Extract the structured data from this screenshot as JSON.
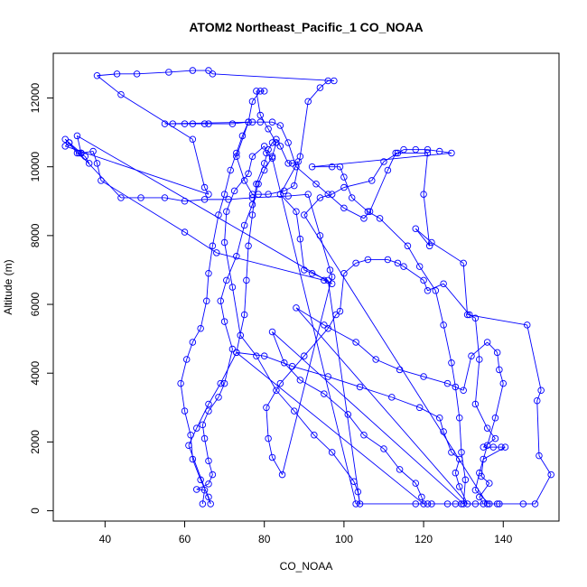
{
  "chart_data": {
    "type": "line",
    "title": "ATOM2 Northeast_Pacific_1 CO_NOAA",
    "xlabel": "CO_NOAA",
    "ylabel": "Altitude (m)",
    "xlim": [
      27,
      154
    ],
    "ylim": [
      -300,
      13300
    ],
    "xticks": [
      40,
      60,
      80,
      100,
      120,
      140
    ],
    "yticks": [
      0,
      2000,
      4000,
      6000,
      8000,
      10000,
      12000
    ],
    "color": "#0000ff",
    "marker": "open-circle",
    "grid": false,
    "points": [
      [
        64.5,
        200
      ],
      [
        65.0,
        600
      ],
      [
        63.0,
        620
      ],
      [
        66.0,
        780
      ],
      [
        67.0,
        1050
      ],
      [
        66.0,
        1450
      ],
      [
        65.0,
        2100
      ],
      [
        64.5,
        2500
      ],
      [
        66.0,
        2900
      ],
      [
        68.5,
        3300
      ],
      [
        70.0,
        3700
      ],
      [
        72.0,
        4700
      ],
      [
        70.0,
        5500
      ],
      [
        69.0,
        6100
      ],
      [
        70.5,
        6700
      ],
      [
        73.0,
        7400
      ],
      [
        75.0,
        8300
      ],
      [
        77.0,
        8900
      ],
      [
        78.5,
        9500
      ],
      [
        80.0,
        9900
      ],
      [
        82.0,
        10300
      ],
      [
        83.0,
        10700
      ],
      [
        81.0,
        11100
      ],
      [
        79.0,
        11500
      ],
      [
        78.0,
        12200
      ],
      [
        80.0,
        12200
      ],
      [
        79.0,
        12200
      ],
      [
        77.0,
        11900
      ],
      [
        76.0,
        11300
      ],
      [
        74.5,
        10900
      ],
      [
        73.0,
        10400
      ],
      [
        71.5,
        9900
      ],
      [
        70.0,
        9200
      ],
      [
        68.5,
        8600
      ],
      [
        67.0,
        7700
      ],
      [
        66.0,
        6900
      ],
      [
        65.5,
        6100
      ],
      [
        64.0,
        5300
      ],
      [
        62.0,
        4900
      ],
      [
        60.5,
        4400
      ],
      [
        59.0,
        3700
      ],
      [
        60.0,
        2900
      ],
      [
        61.5,
        2200
      ],
      [
        62.0,
        1500
      ],
      [
        64.0,
        900
      ],
      [
        66.0,
        400
      ],
      [
        66.5,
        200
      ],
      [
        61.0,
        1900
      ],
      [
        63.0,
        2400
      ],
      [
        66.0,
        3100
      ],
      [
        69.0,
        3700
      ],
      [
        73.0,
        4600
      ],
      [
        75.0,
        5700
      ],
      [
        75.5,
        6700
      ],
      [
        76.0,
        7700
      ],
      [
        77.0,
        8600
      ],
      [
        78.0,
        9500
      ],
      [
        80.0,
        10100
      ],
      [
        81.0,
        10500
      ],
      [
        82.0,
        10700
      ],
      [
        83.0,
        10800
      ],
      [
        84.0,
        10600
      ],
      [
        86.0,
        10100
      ],
      [
        87.0,
        10100
      ],
      [
        88.5,
        10150
      ],
      [
        84.0,
        9200
      ],
      [
        88.0,
        8700
      ],
      [
        89.0,
        7900
      ],
      [
        90.0,
        7000
      ],
      [
        92.0,
        6900
      ],
      [
        96.0,
        6700
      ],
      [
        104.0,
        200
      ],
      [
        103.5,
        550
      ],
      [
        102.5,
        850
      ],
      [
        97.0,
        1700
      ],
      [
        92.5,
        2200
      ],
      [
        87.5,
        2900
      ],
      [
        83.0,
        3500
      ],
      [
        78.0,
        4500
      ],
      [
        74.0,
        5100
      ],
      [
        72.0,
        6500
      ],
      [
        70.0,
        7800
      ],
      [
        70.5,
        8700
      ],
      [
        72.5,
        9300
      ],
      [
        76.0,
        9800
      ],
      [
        77.0,
        10300
      ],
      [
        80.0,
        10600
      ],
      [
        80.5,
        10400
      ],
      [
        82.0,
        10250
      ],
      [
        103.0,
        200
      ],
      [
        118.0,
        200
      ],
      [
        121.0,
        200
      ],
      [
        122.0,
        200
      ],
      [
        126.0,
        200
      ],
      [
        128.0,
        200
      ],
      [
        129.5,
        200
      ],
      [
        133.0,
        200
      ],
      [
        138.5,
        200
      ],
      [
        139.0,
        200
      ],
      [
        145.0,
        200
      ],
      [
        148.0,
        200
      ],
      [
        152.0,
        1050
      ],
      [
        149.0,
        1600
      ],
      [
        148.5,
        3200
      ],
      [
        149.5,
        3500
      ],
      [
        146.0,
        5400
      ],
      [
        131.0,
        5700
      ],
      [
        130.0,
        7200
      ],
      [
        122.0,
        7800
      ],
      [
        118.0,
        8200
      ],
      [
        121.5,
        7700
      ],
      [
        120.0,
        9200
      ],
      [
        121.0,
        10400
      ],
      [
        113.0,
        10400
      ],
      [
        111.0,
        9900
      ],
      [
        106.5,
        8700
      ],
      [
        105.0,
        8500
      ],
      [
        100.0,
        8800
      ],
      [
        96.0,
        9200
      ],
      [
        93.0,
        9500
      ],
      [
        88.0,
        10000
      ],
      [
        86.0,
        10700
      ],
      [
        84.0,
        11200
      ],
      [
        82.0,
        11300
      ],
      [
        79.0,
        11300
      ],
      [
        77.0,
        11300
      ],
      [
        55.0,
        11250
      ],
      [
        57.0,
        11250
      ],
      [
        60.0,
        11250
      ],
      [
        62.0,
        11250
      ],
      [
        65.0,
        11250
      ],
      [
        66.0,
        11250
      ],
      [
        72.0,
        11250
      ],
      [
        76.0,
        11300
      ],
      [
        73.0,
        10300
      ],
      [
        75.0,
        9600
      ],
      [
        77.0,
        9200
      ],
      [
        78.5,
        9200
      ],
      [
        81.0,
        9200
      ],
      [
        85.0,
        9300
      ],
      [
        87.5,
        9450
      ],
      [
        89.0,
        10300
      ],
      [
        91.0,
        11900
      ],
      [
        94.0,
        12300
      ],
      [
        96.0,
        12500
      ],
      [
        97.5,
        12500
      ],
      [
        67.0,
        12700
      ],
      [
        66.0,
        12800
      ],
      [
        62.0,
        12800
      ],
      [
        56.0,
        12750
      ],
      [
        48.0,
        12700
      ],
      [
        43.0,
        12700
      ],
      [
        38.0,
        12650
      ],
      [
        44.0,
        12100
      ],
      [
        62.0,
        10800
      ],
      [
        65.0,
        9400
      ],
      [
        66.0,
        9200
      ],
      [
        30.0,
        10600
      ],
      [
        31.0,
        10700
      ],
      [
        34.0,
        10400
      ],
      [
        37.0,
        10450
      ],
      [
        38.0,
        10100
      ],
      [
        39.0,
        9600
      ],
      [
        60.0,
        8100
      ],
      [
        68.0,
        7500
      ],
      [
        95.0,
        6700
      ],
      [
        97.0,
        6600
      ],
      [
        33.0,
        10900
      ],
      [
        34.0,
        10400
      ],
      [
        33.5,
        10400
      ],
      [
        35.0,
        10300
      ],
      [
        36.0,
        10100
      ],
      [
        33.0,
        10400
      ],
      [
        30.0,
        10800
      ],
      [
        31.0,
        10700
      ],
      [
        44.0,
        9100
      ],
      [
        49.0,
        9100
      ],
      [
        55.0,
        9100
      ],
      [
        60.0,
        9000
      ],
      [
        65.0,
        9050
      ],
      [
        71.0,
        9050
      ],
      [
        77.0,
        9100
      ],
      [
        86.0,
        9150
      ],
      [
        91.0,
        9200
      ],
      [
        94.0,
        8000
      ],
      [
        96.5,
        7000
      ],
      [
        97.0,
        6800
      ],
      [
        84.5,
        1050
      ],
      [
        82.0,
        1550
      ],
      [
        81.0,
        2100
      ],
      [
        80.5,
        3000
      ],
      [
        84.0,
        3700
      ],
      [
        90.0,
        4500
      ],
      [
        96.0,
        5300
      ],
      [
        98.0,
        5700
      ],
      [
        99.0,
        5800
      ],
      [
        100.0,
        6900
      ],
      [
        103.0,
        7200
      ],
      [
        106.0,
        7300
      ],
      [
        111.0,
        7300
      ],
      [
        113.5,
        7200
      ],
      [
        115.0,
        7100
      ],
      [
        120.0,
        6700
      ],
      [
        121.0,
        6400
      ],
      [
        125.0,
        6600
      ],
      [
        131.5,
        5700
      ],
      [
        133.0,
        5600
      ],
      [
        134.0,
        4400
      ],
      [
        133.0,
        3100
      ],
      [
        136.0,
        2400
      ],
      [
        138.0,
        2100
      ],
      [
        135.0,
        1850
      ],
      [
        137.5,
        1850
      ],
      [
        139.5,
        1850
      ],
      [
        140.5,
        1850
      ],
      [
        135.0,
        1500
      ],
      [
        134.5,
        1000
      ],
      [
        136.5,
        800
      ],
      [
        134.0,
        400
      ],
      [
        135.0,
        200
      ],
      [
        136.0,
        200
      ],
      [
        90.0,
        8600
      ],
      [
        94.0,
        9100
      ],
      [
        97.0,
        9200
      ],
      [
        100.0,
        9400
      ],
      [
        107.0,
        9600
      ],
      [
        110.0,
        10150
      ],
      [
        113.5,
        10400
      ],
      [
        115.0,
        10500
      ],
      [
        118.0,
        10500
      ],
      [
        121.0,
        10500
      ],
      [
        124.0,
        10450
      ],
      [
        127.0,
        10400
      ],
      [
        92.0,
        10000
      ],
      [
        97.0,
        10000
      ],
      [
        99.0,
        10000
      ],
      [
        100.0,
        9700
      ],
      [
        102.0,
        9100
      ],
      [
        106.0,
        8700
      ],
      [
        109.0,
        8500
      ],
      [
        116.0,
        7700
      ],
      [
        119.0,
        7100
      ],
      [
        123.0,
        6400
      ],
      [
        125.0,
        5400
      ],
      [
        127.0,
        4300
      ],
      [
        128.0,
        3600
      ],
      [
        129.0,
        2700
      ],
      [
        129.5,
        1700
      ],
      [
        130.5,
        900
      ],
      [
        130.0,
        200
      ],
      [
        82.0,
        5200
      ],
      [
        85.0,
        4300
      ],
      [
        89.0,
        3800
      ],
      [
        95.0,
        3400
      ],
      [
        101.0,
        2800
      ],
      [
        105.0,
        2200
      ],
      [
        110.0,
        1800
      ],
      [
        114.0,
        1200
      ],
      [
        118.0,
        800
      ],
      [
        119.5,
        400
      ],
      [
        120.0,
        200
      ],
      [
        73.0,
        4600
      ],
      [
        80.0,
        4500
      ],
      [
        87.0,
        4200
      ],
      [
        96.0,
        3900
      ],
      [
        104.0,
        3600
      ],
      [
        112.0,
        3300
      ],
      [
        119.0,
        3000
      ],
      [
        124.0,
        2700
      ],
      [
        125.0,
        2300
      ],
      [
        127.0,
        1700
      ],
      [
        129.0,
        1500
      ],
      [
        128.0,
        1100
      ],
      [
        129.0,
        700
      ],
      [
        131.0,
        200
      ],
      [
        88.0,
        5900
      ],
      [
        95.0,
        5400
      ],
      [
        103.0,
        4900
      ],
      [
        108.0,
        4400
      ],
      [
        114.0,
        4100
      ],
      [
        120.0,
        3900
      ],
      [
        126.0,
        3700
      ],
      [
        130.0,
        3500
      ],
      [
        132.0,
        4500
      ],
      [
        136.0,
        4900
      ],
      [
        138.5,
        4600
      ],
      [
        139.0,
        4100
      ],
      [
        140.0,
        3700
      ],
      [
        138.0,
        2700
      ],
      [
        136.0,
        1900
      ],
      [
        134.0,
        1100
      ],
      [
        133.0,
        600
      ],
      [
        136.5,
        200
      ]
    ]
  }
}
